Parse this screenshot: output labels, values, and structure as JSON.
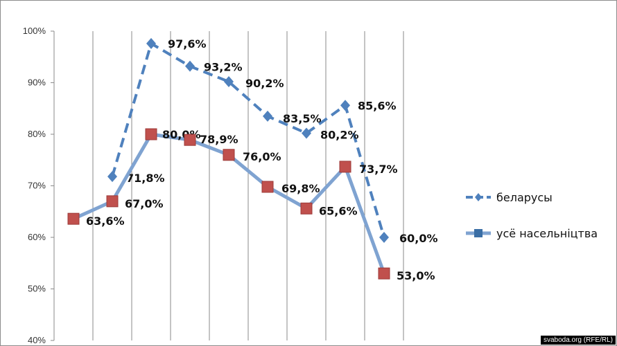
{
  "chart_data": {
    "type": "line",
    "title": "",
    "xlabel": "",
    "ylabel": "",
    "ylim": [
      40,
      100
    ],
    "y_ticks": [
      "40%",
      "50%",
      "60%",
      "70%",
      "80%",
      "90%",
      "100%"
    ],
    "grid": "vertical",
    "legend": "right",
    "series": [
      {
        "name": "беларусы",
        "color": "#4f81bd",
        "line_style": "dashed",
        "marker": "diamond",
        "values": [
          null,
          71.8,
          97.6,
          93.2,
          90.2,
          83.5,
          80.2,
          85.6,
          60.0
        ],
        "labels": [
          null,
          "71,8%",
          "97,6%",
          "93,2%",
          "90,2%",
          "83,5%",
          "80,2%",
          "85,6%",
          "60,0%"
        ]
      },
      {
        "name": "усё насельніцтва",
        "color": "#7fa3d1",
        "marker_color": "#c0504d",
        "line_style": "solid",
        "marker": "square",
        "values": [
          63.6,
          67.0,
          80.0,
          78.9,
          76.0,
          69.8,
          65.6,
          73.7,
          53.0
        ],
        "labels": [
          "63,6%",
          "67,0%",
          "80,0%",
          "78,9%",
          "76,0%",
          "69,8%",
          "65,6%",
          "73,7%",
          "53,0%"
        ]
      }
    ]
  },
  "credit": "svaboda.org (RFE/RL)"
}
